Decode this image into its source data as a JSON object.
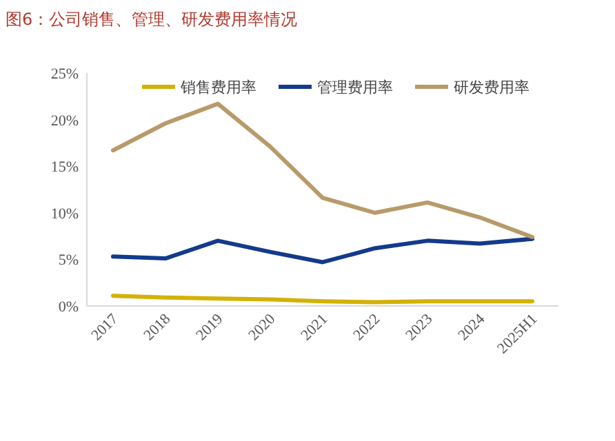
{
  "chart_data": {
    "type": "line",
    "title": "图6：公司销售、管理、研发费用率情况",
    "categories": [
      "2017",
      "2018",
      "2019",
      "2020",
      "2021",
      "2022",
      "2023",
      "2024",
      "2025H1"
    ],
    "series": [
      {
        "name": "销售费用率",
        "color": "#d4b106",
        "values": [
          1.1,
          0.9,
          0.8,
          0.7,
          0.5,
          0.4,
          0.5,
          0.5,
          0.5
        ]
      },
      {
        "name": "管理费用率",
        "color": "#133a8c",
        "values": [
          5.3,
          5.1,
          7.0,
          5.8,
          4.7,
          6.2,
          7.0,
          6.7,
          7.2
        ]
      },
      {
        "name": "研发费用率",
        "color": "#b89a6a",
        "values": [
          16.7,
          19.6,
          21.7,
          17.1,
          11.6,
          10.0,
          11.1,
          9.5,
          7.4
        ]
      }
    ],
    "ylim": [
      0,
      25
    ],
    "yticks": [
      {
        "value": 0,
        "label": "0%"
      },
      {
        "value": 5,
        "label": "5%"
      },
      {
        "value": 10,
        "label": "10%"
      },
      {
        "value": 15,
        "label": "15%"
      },
      {
        "value": 20,
        "label": "20%"
      },
      {
        "value": 25,
        "label": "25%"
      }
    ],
    "grid": false,
    "legend": "top",
    "marker": "none",
    "line_style": "solid"
  }
}
